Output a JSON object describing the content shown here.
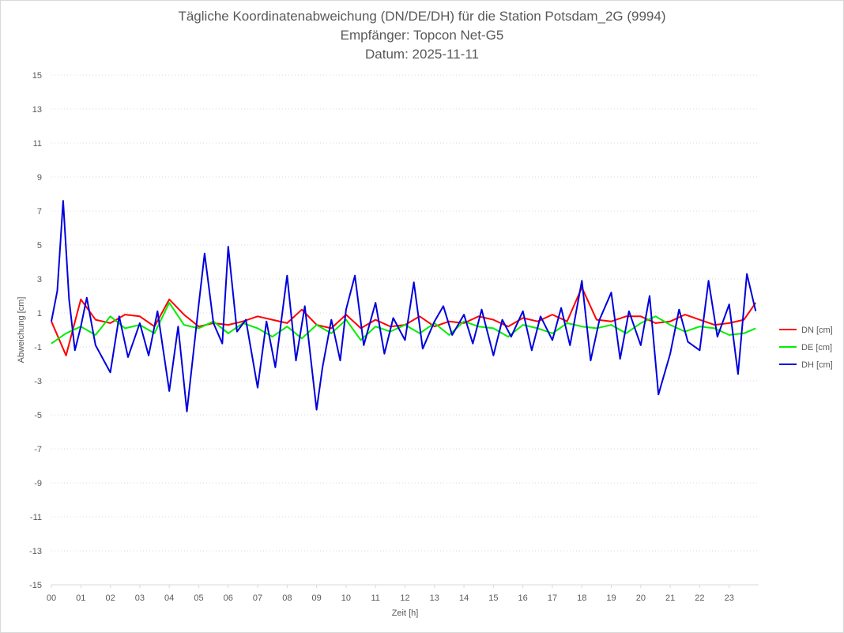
{
  "chart_data": {
    "type": "line",
    "title": "Tägliche Koordinatenabweichung (DN/DE/DH) für die Station Potsdam_2G (9994)",
    "subtitle": "Empfänger: Topcon Net-G5",
    "date_line": "Datum: 2025-11-11",
    "xlabel": "Zeit [h]",
    "ylabel": "Abweichung [cm]",
    "xlim": [
      0,
      24
    ],
    "ylim": [
      -15,
      15
    ],
    "x_ticks": [
      "00",
      "01",
      "02",
      "03",
      "04",
      "05",
      "06",
      "07",
      "08",
      "09",
      "10",
      "11",
      "12",
      "13",
      "14",
      "15",
      "16",
      "17",
      "18",
      "19",
      "20",
      "21",
      "22",
      "23"
    ],
    "y_ticks": [
      "15",
      "13",
      "11",
      "9",
      "7",
      "5",
      "3",
      "1",
      "-1",
      "-3",
      "-5",
      "-7",
      "-9",
      "-11",
      "-13",
      "-15"
    ],
    "legend_position": "right",
    "grid": "horizontal dotted",
    "series": [
      {
        "name": "DN [cm]",
        "color": "#ff0000",
        "x": [
          0,
          0.5,
          1,
          1.5,
          2,
          2.5,
          3,
          3.5,
          4,
          4.5,
          5,
          5.5,
          6,
          6.5,
          7,
          7.5,
          8,
          8.5,
          9,
          9.5,
          10,
          10.5,
          11,
          11.5,
          12,
          12.5,
          13,
          13.5,
          14,
          14.5,
          15,
          15.5,
          16,
          16.5,
          17,
          17.5,
          18,
          18.5,
          19,
          19.5,
          20,
          20.5,
          21,
          21.5,
          22,
          22.5,
          23,
          23.5,
          23.9
        ],
        "values": [
          0.5,
          -1.5,
          1.8,
          0.6,
          0.4,
          0.9,
          0.8,
          0.2,
          1.8,
          0.9,
          0.2,
          0.4,
          0.3,
          0.5,
          0.8,
          0.6,
          0.4,
          1.2,
          0.3,
          0.1,
          0.9,
          0.1,
          0.6,
          0.2,
          0.3,
          0.8,
          0.2,
          0.5,
          0.4,
          0.8,
          0.6,
          0.2,
          0.7,
          0.5,
          0.9,
          0.5,
          2.5,
          0.6,
          0.5,
          0.8,
          0.8,
          0.4,
          0.5,
          0.9,
          0.6,
          0.3,
          0.4,
          0.6,
          1.6
        ]
      },
      {
        "name": "DE [cm]",
        "color": "#00ee00",
        "x": [
          0,
          0.5,
          1,
          1.5,
          2,
          2.5,
          3,
          3.5,
          4,
          4.5,
          5,
          5.5,
          6,
          6.5,
          7,
          7.5,
          8,
          8.5,
          9,
          9.5,
          10,
          10.5,
          11,
          11.5,
          12,
          12.5,
          13,
          13.5,
          14,
          14.5,
          15,
          15.5,
          16,
          16.5,
          17,
          17.5,
          18,
          18.5,
          19,
          19.5,
          20,
          20.5,
          21,
          21.5,
          22,
          22.5,
          23,
          23.5,
          23.9
        ],
        "values": [
          -0.8,
          -0.2,
          0.2,
          -0.3,
          0.8,
          0.1,
          0.3,
          -0.2,
          1.6,
          0.3,
          0.1,
          0.5,
          -0.2,
          0.4,
          0.1,
          -0.4,
          0.2,
          -0.5,
          0.3,
          -0.2,
          0.6,
          -0.6,
          0.2,
          -0.1,
          0.3,
          -0.2,
          0.4,
          -0.3,
          0.5,
          0.2,
          0.1,
          -0.4,
          0.3,
          0.1,
          -0.2,
          0.4,
          0.2,
          0.1,
          0.3,
          -0.2,
          0.4,
          0.8,
          0.3,
          -0.1,
          0.2,
          0.1,
          -0.3,
          -0.2,
          0.1
        ]
      },
      {
        "name": "DH [cm]",
        "color": "#0000dd",
        "x": [
          0,
          0.2,
          0.4,
          0.6,
          0.8,
          1,
          1.2,
          1.5,
          2,
          2.3,
          2.6,
          3,
          3.3,
          3.6,
          4,
          4.3,
          4.6,
          5,
          5.2,
          5.5,
          5.8,
          6,
          6.3,
          6.6,
          7,
          7.3,
          7.6,
          8,
          8.3,
          8.6,
          9,
          9.2,
          9.5,
          9.8,
          10,
          10.3,
          10.6,
          11,
          11.3,
          11.6,
          12,
          12.3,
          12.6,
          13,
          13.3,
          13.6,
          14,
          14.3,
          14.6,
          15,
          15.3,
          15.6,
          16,
          16.3,
          16.6,
          17,
          17.3,
          17.6,
          18,
          18.3,
          18.6,
          19,
          19.3,
          19.6,
          20,
          20.3,
          20.6,
          21,
          21.3,
          21.6,
          22,
          22.3,
          22.6,
          23,
          23.3,
          23.6,
          23.9
        ],
        "values": [
          0.5,
          2.3,
          7.6,
          1.8,
          -1.2,
          0.2,
          1.9,
          -0.9,
          -2.5,
          0.8,
          -1.6,
          0.4,
          -1.5,
          1.1,
          -3.6,
          0.2,
          -4.8,
          1.5,
          4.5,
          0.4,
          -0.8,
          4.9,
          -0.1,
          0.6,
          -3.4,
          0.5,
          -2.2,
          3.2,
          -1.8,
          1.4,
          -4.7,
          -2.2,
          0.6,
          -1.8,
          1.2,
          3.2,
          -0.9,
          1.6,
          -1.4,
          0.7,
          -0.6,
          2.8,
          -1.1,
          0.5,
          1.4,
          -0.3,
          0.9,
          -0.8,
          1.2,
          -1.5,
          0.6,
          -0.4,
          1.1,
          -1.2,
          0.8,
          -0.6,
          1.3,
          -0.9,
          2.9,
          -1.8,
          0.6,
          2.2,
          -1.7,
          1.1,
          -0.9,
          2.0,
          -3.8,
          -1.4,
          1.2,
          -0.7,
          -1.2,
          2.9,
          -0.4,
          1.5,
          -2.6,
          3.3,
          1.1
        ]
      }
    ]
  }
}
